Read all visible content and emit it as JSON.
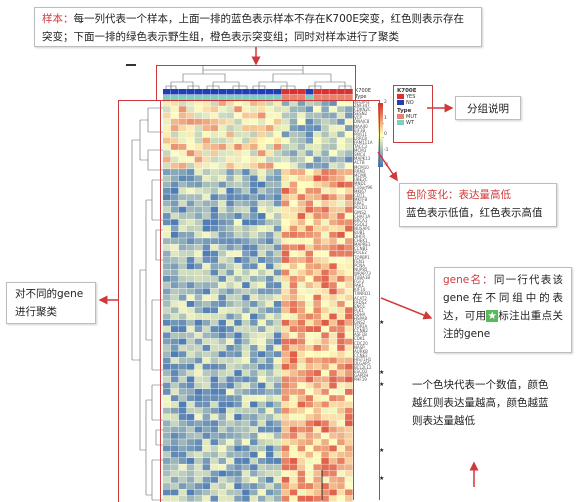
{
  "annotations": {
    "sample": {
      "label": "样本：",
      "text": "每一列代表一个样本，上面一排的蓝色表示样本不存在K700E突变，红色则表示存在突变；下面一排的绿色表示野生组，橙色表示突变组；同时对样本进行了聚类"
    },
    "group": {
      "text": "分组说明"
    },
    "color_scale": {
      "title": "色阶变化：表达量高低",
      "text": "蓝色表示低值，红色表示高值"
    },
    "cluster": {
      "text": "对不同的gene进行聚类"
    },
    "gene": {
      "label": "gene名：",
      "text_before": "同一行代表该gene在不同组中的表达，可用",
      "star": "★",
      "text_after": "标注出重点关注的gene"
    },
    "cell": {
      "text": "一个色块代表一个数值，颜色越红则表达量越高，颜色越蓝则表达量越低"
    }
  },
  "legend": {
    "title": "K700E",
    "items": [
      {
        "label": "YES",
        "color": "#d9322f"
      },
      {
        "label": "NO",
        "color": "#1f3fb3"
      }
    ],
    "type_title": "Type",
    "type_items": [
      {
        "label": "MUT",
        "color": "#e8826a"
      },
      {
        "label": "WT",
        "color": "#7fcfc0"
      }
    ]
  },
  "heatmap": {
    "row_labels": [
      "K700E",
      "Type"
    ],
    "scale_ticks": [
      "2",
      "1",
      "0",
      "-1",
      "-2"
    ],
    "genes": [
      "SLC6A5",
      "ZNF347",
      "CDKN2C",
      "SESN2",
      "VCP",
      "DNAJC8",
      "NAA40",
      "EIF3B",
      "PRR11",
      "LRRC8",
      "FAM111A",
      "TACC3",
      "MCM3",
      "SMC4",
      "MAPK13",
      "ACTB",
      "MCM10",
      "RRM2",
      "MCM6",
      "UBE2C",
      "MND1",
      "C16orf96",
      "MKI67",
      "CDT1",
      "MKTFB",
      "RPA1",
      "POLD1",
      "GINS2",
      "CHAF1A",
      "BRCA1",
      "SGOL2",
      "NUSAP1",
      "BUB1",
      "DHFR",
      "CHEK1",
      "MAPRE1",
      "CCNB1",
      "POLE2",
      "TOPBP1",
      "FEN1",
      "PCNA",
      "NUP85",
      "WRAP73",
      "TUBA1B",
      "FGF2",
      "PAK1",
      "KIF14",
      "TXNRD1",
      "ACAT2",
      "FADS2",
      "ENO1",
      "PLK1",
      "SDHA",
      "HSPA8",
      "GNS2",
      "TOP2A",
      "CCNB2",
      "ASF1B",
      "CDK1",
      "CDC20",
      "NASP",
      "AURKB",
      "CCNE2",
      "HIST1H1",
      "DLGAP5",
      "BCL2L12",
      "ESCO2",
      "GAPDH",
      "PHF19"
    ]
  },
  "colors": {
    "accent": "#d0393b",
    "high": "#d73027",
    "mid": "#ffffbf",
    "low": "#4575b4"
  }
}
